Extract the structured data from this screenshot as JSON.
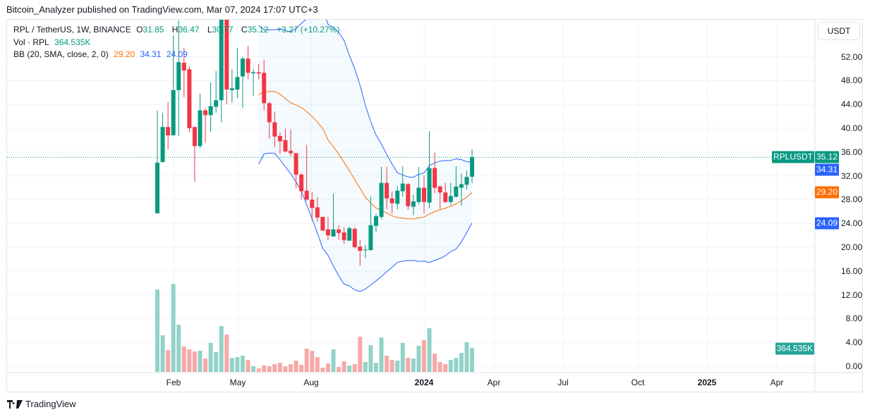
{
  "attribution": "Bitcoin_Analyzer published on TradingView.com, Mar 07, 2024 17:07 UTC+3",
  "legend": {
    "symbol": "RPL / TetherUS, 1W, BINANCE",
    "o_label": "O",
    "o": "31.85",
    "h_label": "H",
    "h": "36.47",
    "l_label": "L",
    "l": "30.77",
    "c_label": "C",
    "c": "35.12",
    "change": "+3.27 (+10.27%)",
    "vol_label": "Vol · RPL",
    "vol": "364.535K",
    "bb_label": "BB (20, SMA, close, 2, 0)",
    "bb_basis": "29.20",
    "bb_upper": "34.31",
    "bb_lower": "24.09"
  },
  "price_axis": {
    "currency_button": "USDT",
    "ticks": [
      "52.00",
      "48.00",
      "44.00",
      "40.00",
      "36.00",
      "32.00",
      "28.00",
      "24.00",
      "20.00",
      "16.00",
      "12.00",
      "8.00",
      "4.00",
      "0.00"
    ],
    "tags": {
      "symbol": "RPLUSDT",
      "last_price": "35.12",
      "bb_upper": "34.31",
      "bb_basis": "29.20",
      "bb_lower": "24.09",
      "volume": "364.535K"
    }
  },
  "time_axis": {
    "ticks": [
      {
        "label": "Feb",
        "bold": false
      },
      {
        "label": "May",
        "bold": false
      },
      {
        "label": "Aug",
        "bold": false
      },
      {
        "label": "2024",
        "bold": true
      },
      {
        "label": "Apr",
        "bold": false
      },
      {
        "label": "Jul",
        "bold": false
      },
      {
        "label": "Oct",
        "bold": false
      },
      {
        "label": "2025",
        "bold": true
      },
      {
        "label": "Apr",
        "bold": false
      }
    ]
  },
  "logo_text": "TradingView",
  "colors": {
    "up": "#089981",
    "down": "#F23645",
    "vol_up": "#92D2C7",
    "vol_down": "#F7A9A7",
    "bb_band": "#2962FF",
    "bb_basis": "#FF6D00",
    "bb_fill": "rgba(33,150,243,0.05)"
  },
  "chart_data": {
    "type": "candlestick",
    "symbol": "RPLUSDT",
    "interval": "1W",
    "x": [
      "2023-01-16",
      "2023-01-23",
      "2023-01-30",
      "2023-02-06",
      "2023-02-13",
      "2023-02-20",
      "2023-02-27",
      "2023-03-06",
      "2023-03-13",
      "2023-03-20",
      "2023-03-27",
      "2023-04-03",
      "2023-04-10",
      "2023-04-17",
      "2023-04-24",
      "2023-05-01",
      "2023-05-08",
      "2023-05-15",
      "2023-05-22",
      "2023-05-29",
      "2023-06-05",
      "2023-06-12",
      "2023-06-19",
      "2023-06-26",
      "2023-07-03",
      "2023-07-10",
      "2023-07-17",
      "2023-07-24",
      "2023-07-31",
      "2023-08-07",
      "2023-08-14",
      "2023-08-21",
      "2023-08-28",
      "2023-09-04",
      "2023-09-11",
      "2023-09-18",
      "2023-09-25",
      "2023-10-02",
      "2023-10-09",
      "2023-10-16",
      "2023-10-23",
      "2023-10-30",
      "2023-11-06",
      "2023-11-13",
      "2023-11-20",
      "2023-11-27",
      "2023-12-04",
      "2023-12-11",
      "2023-12-18",
      "2023-12-25",
      "2024-01-01",
      "2024-01-08",
      "2024-01-15",
      "2024-01-22",
      "2024-01-29",
      "2024-02-05",
      "2024-02-12",
      "2024-02-19",
      "2024-02-26",
      "2024-03-04"
    ],
    "ohlc": [
      [
        25.7,
        43,
        25.7,
        34.2
      ],
      [
        34.3,
        42.6,
        34.3,
        40.2
      ],
      [
        40.2,
        44.4,
        36.4,
        38.8
      ],
      [
        38.8,
        55.6,
        38.8,
        46.4
      ],
      [
        46.4,
        58.1,
        38.7,
        51.1
      ],
      [
        51,
        53.5,
        45.2,
        49.7
      ],
      [
        49.9,
        50.4,
        39.3,
        40
      ],
      [
        40.2,
        40.2,
        31,
        37
      ],
      [
        37,
        45.8,
        36.6,
        43
      ],
      [
        43,
        43.4,
        37.6,
        42.2
      ],
      [
        42.2,
        47.7,
        39.4,
        43.7
      ],
      [
        43.6,
        49.6,
        42.6,
        44.7
      ],
      [
        44.7,
        62,
        41,
        60
      ],
      [
        60,
        63,
        44,
        46.5
      ],
      [
        46.4,
        49.9,
        44.3,
        46.7
      ],
      [
        46.5,
        53.5,
        45,
        48.6
      ],
      [
        48.7,
        52,
        43.4,
        51.7
      ],
      [
        51.7,
        53.8,
        48.2,
        49.3
      ],
      [
        49.2,
        50,
        45.4,
        49.4
      ],
      [
        49.4,
        50.8,
        48.2,
        49.2
      ],
      [
        49.3,
        51.5,
        43,
        44.2
      ],
      [
        44.2,
        44.4,
        38.2,
        41
      ],
      [
        41,
        42.8,
        36.8,
        38.6
      ],
      [
        38.7,
        39.3,
        35.7,
        37.8
      ],
      [
        38,
        39.9,
        35.9,
        36.1
      ],
      [
        36.2,
        39.8,
        35.3,
        35.8
      ],
      [
        35.8,
        35.8,
        29.9,
        32.2
      ],
      [
        32.2,
        32.5,
        28,
        29.4
      ],
      [
        29.5,
        37.2,
        27.8,
        28
      ],
      [
        28,
        29.3,
        24.5,
        26.6
      ],
      [
        26.7,
        28.4,
        24.3,
        25
      ],
      [
        25.1,
        25.1,
        22.7,
        22.8
      ],
      [
        23,
        25.1,
        21.2,
        22
      ],
      [
        21.8,
        29,
        21.8,
        23
      ],
      [
        23,
        23.7,
        21.3,
        22.4
      ],
      [
        22.5,
        23.3,
        20.6,
        21.2
      ],
      [
        21.1,
        23.5,
        21.1,
        23.2
      ],
      [
        23.1,
        23.4,
        19.8,
        20
      ],
      [
        20.1,
        21.2,
        16.9,
        19.4
      ],
      [
        19.5,
        20.4,
        18.2,
        19.6
      ],
      [
        19.5,
        28.5,
        19.5,
        23.7
      ],
      [
        23.6,
        25.6,
        22.6,
        25.2
      ],
      [
        25.1,
        33.5,
        24.7,
        30.8
      ],
      [
        30.8,
        33.5,
        26.4,
        28.2
      ],
      [
        28.2,
        29.4,
        25.7,
        27.4
      ],
      [
        27.3,
        30.3,
        26.4,
        29.5
      ],
      [
        29.4,
        33.6,
        28.5,
        30.7
      ],
      [
        30.6,
        30.8,
        26.3,
        26.9
      ],
      [
        26.8,
        28.8,
        25.4,
        27.7
      ],
      [
        27.6,
        33.5,
        27.2,
        30
      ],
      [
        30,
        32.1,
        25.7,
        27.6
      ],
      [
        27.5,
        39.5,
        26.6,
        33.3
      ],
      [
        33.3,
        35.9,
        29.1,
        30
      ],
      [
        30.2,
        30.4,
        26.4,
        29.2
      ],
      [
        29.2,
        30.8,
        27.4,
        27.6
      ],
      [
        27.6,
        30.8,
        27.2,
        28.6
      ],
      [
        28.5,
        33.6,
        28.3,
        30.2
      ],
      [
        30,
        32.4,
        27,
        30.6
      ],
      [
        30.5,
        32.9,
        29.7,
        31.8
      ],
      [
        31.85,
        36.47,
        30.77,
        35.12
      ]
    ],
    "volume": [
      1254000,
      557000,
      332000,
      1340000,
      718000,
      386000,
      343000,
      311000,
      322000,
      204000,
      440000,
      300000,
      697000,
      568000,
      214000,
      225000,
      247000,
      182000,
      86000,
      54000,
      97000,
      86000,
      118000,
      139000,
      86000,
      118000,
      172000,
      107000,
      354000,
      322000,
      225000,
      64000,
      129000,
      343000,
      75000,
      161000,
      96000,
      118000,
      536000,
      150000,
      407000,
      139000,
      525000,
      247000,
      182000,
      172000,
      440000,
      214000,
      204000,
      397000,
      482000,
      665000,
      279000,
      150000,
      118000,
      182000,
      214000,
      289000,
      450000,
      364535
    ],
    "bollinger": {
      "length": 20,
      "source": "close",
      "mult": 2,
      "offset": 0,
      "last": {
        "basis": 29.2,
        "upper": 34.31,
        "lower": 24.09
      }
    },
    "ylim": [
      0,
      58.3
    ],
    "grid": true
  }
}
